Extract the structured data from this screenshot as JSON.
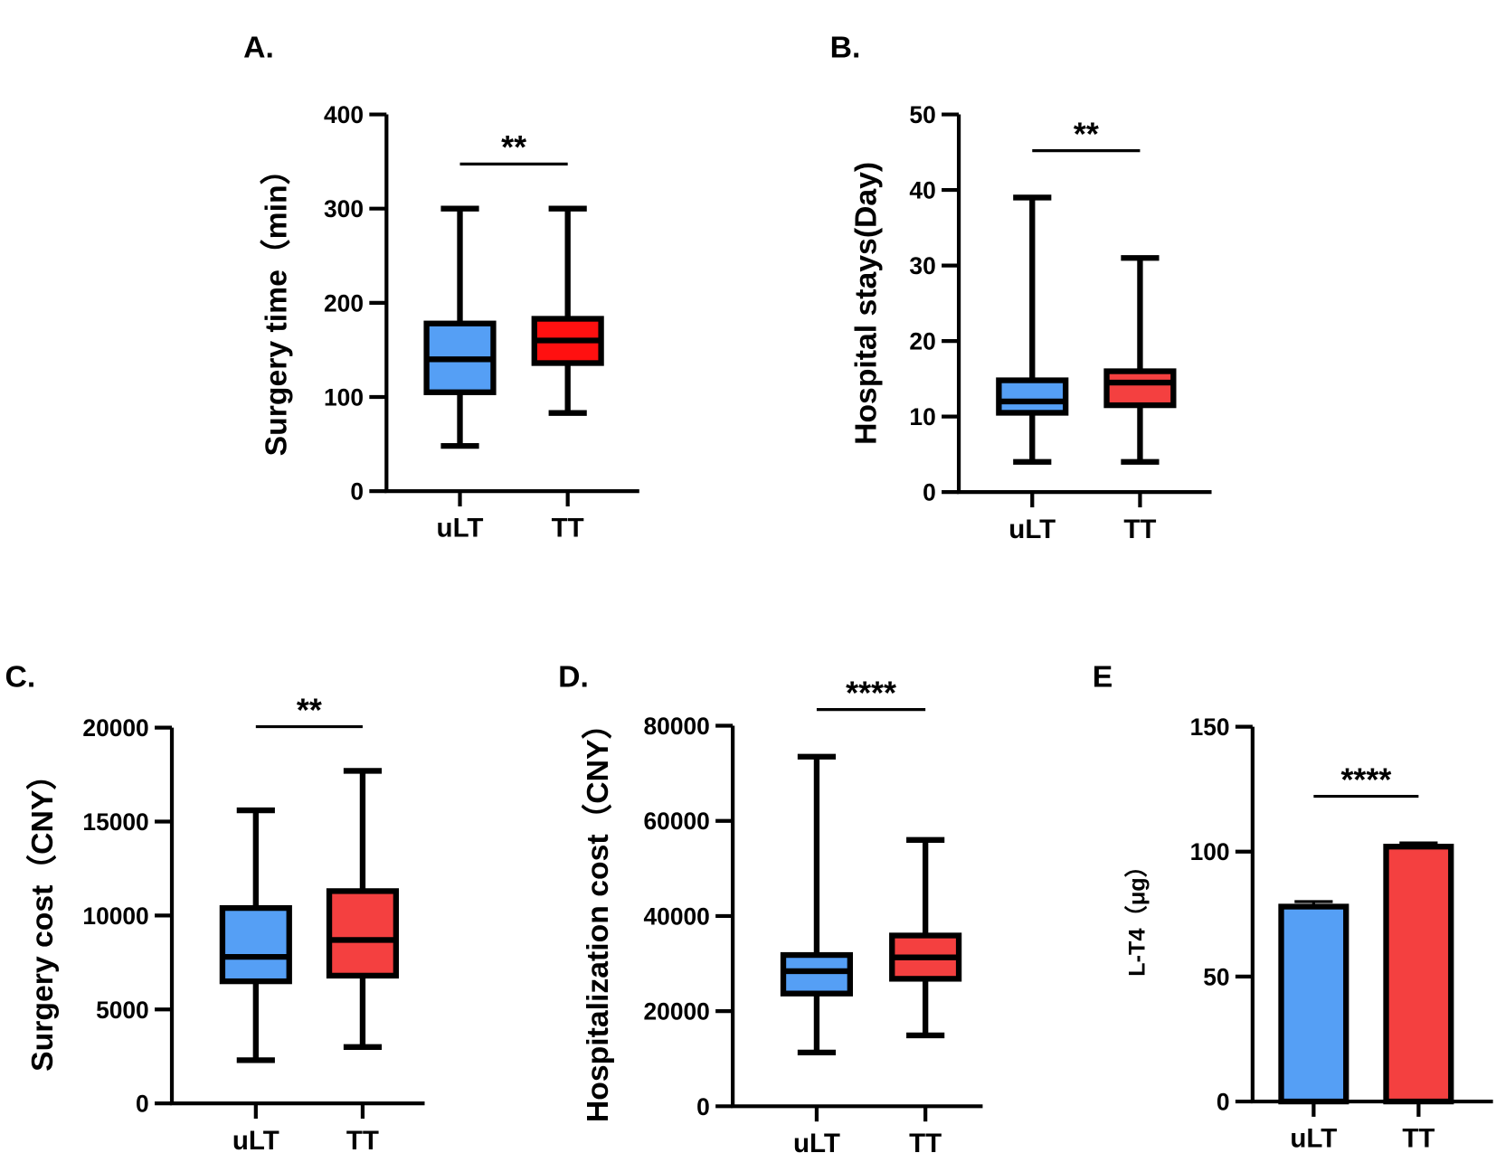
{
  "chart_data": [
    {
      "type": "box",
      "panel": "A.",
      "ylabel": "Surgery time（min）",
      "ylim": [
        0,
        400
      ],
      "yticks": [
        0,
        100,
        200,
        300,
        400
      ],
      "categories": [
        "uLT",
        "TT"
      ],
      "significance": "**",
      "colors": [
        "#559ff5",
        "#ff1010"
      ],
      "series": [
        {
          "name": "uLT",
          "min": 48,
          "q1": 105,
          "median": 140,
          "q3": 178,
          "max": 300
        },
        {
          "name": "TT",
          "min": 83,
          "q1": 136,
          "median": 160,
          "q3": 183,
          "max": 300
        }
      ]
    },
    {
      "type": "box",
      "panel": "B.",
      "ylabel": "Hospital stays(Day)",
      "ylim": [
        0,
        50
      ],
      "yticks": [
        0,
        10,
        20,
        30,
        40,
        50
      ],
      "categories": [
        "uLT",
        "TT"
      ],
      "significance": "**",
      "colors": [
        "#559ff5",
        "#f44040"
      ],
      "series": [
        {
          "name": "uLT",
          "min": 4,
          "q1": 10.5,
          "median": 12,
          "q3": 14.8,
          "max": 39
        },
        {
          "name": "TT",
          "min": 4,
          "q1": 11.5,
          "median": 14.5,
          "q3": 16,
          "max": 31
        }
      ]
    },
    {
      "type": "box",
      "panel": "C.",
      "ylabel": "Surgery cost（CNY）",
      "ylim": [
        0,
        20000
      ],
      "yticks": [
        0,
        5000,
        10000,
        15000,
        20000
      ],
      "categories": [
        "uLT",
        "TT"
      ],
      "significance": "**",
      "colors": [
        "#559ff5",
        "#f44040"
      ],
      "series": [
        {
          "name": "uLT",
          "min": 2300,
          "q1": 6500,
          "median": 7800,
          "q3": 10400,
          "max": 15600
        },
        {
          "name": "TT",
          "min": 3000,
          "q1": 6800,
          "median": 8700,
          "q3": 11300,
          "max": 17700
        }
      ]
    },
    {
      "type": "box",
      "panel": "D.",
      "ylabel": "Hospitalization cost（CNY）",
      "ylim": [
        0,
        80000
      ],
      "yticks": [
        0,
        20000,
        40000,
        60000,
        80000
      ],
      "categories": [
        "uLT",
        "TT"
      ],
      "significance": "****",
      "colors": [
        "#559ff5",
        "#f44040"
      ],
      "series": [
        {
          "name": "uLT",
          "min": 11300,
          "q1": 23700,
          "median": 28400,
          "q3": 31800,
          "max": 73500
        },
        {
          "name": "TT",
          "min": 14900,
          "q1": 26800,
          "median": 31300,
          "q3": 35900,
          "max": 56000
        }
      ]
    },
    {
      "type": "bar",
      "panel": "E",
      "ylabel": "L-T4（μg）",
      "ylim": [
        0,
        150
      ],
      "yticks": [
        0,
        50,
        100,
        150
      ],
      "categories": [
        "uLT",
        "TT"
      ],
      "significance": "****",
      "colors": [
        "#559ff5",
        "#f44040"
      ],
      "values": [
        78,
        102
      ],
      "error_upper": [
        80,
        103.5
      ]
    }
  ]
}
